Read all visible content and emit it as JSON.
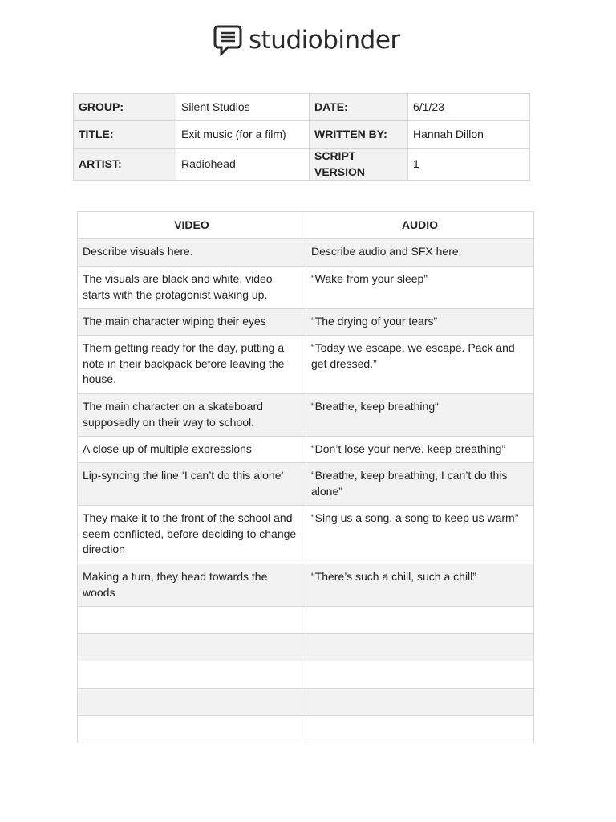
{
  "header": {
    "brand": "studiobinder"
  },
  "info_table": {
    "rows": [
      [
        "GROUP:",
        "Silent Studios",
        "DATE:",
        "6/1/23"
      ],
      [
        "TITLE:",
        "Exit music (for a film)",
        "WRITTEN BY:",
        "Hannah Dillon"
      ],
      [
        "ARTIST:",
        "Radiohead",
        "SCRIPT VERSION",
        "1"
      ]
    ]
  },
  "script_table": {
    "headers": [
      "VIDEO",
      "AUDIO"
    ],
    "rows": [
      [
        "Describe visuals here.",
        "Describe audio and SFX here."
      ],
      [
        "The visuals are black and white, video starts with the protagonist waking up.",
        "“Wake from your sleep”"
      ],
      [
        "The main character wiping their eyes",
        "“The drying of your tears”"
      ],
      [
        "Them getting ready for the day, putting a note in their backpack before leaving the house.",
        "“Today we escape, we escape. Pack and get dressed.”"
      ],
      [
        "The main character on a skateboard supposedly on their way to school.",
        "“Breathe, keep breathing“"
      ],
      [
        "A close up of multiple expressions",
        "“Don’t lose your nerve, keep breathing”"
      ],
      [
        "Lip-syncing the line ‘I can’t do this alone’",
        "“Breathe, keep breathing, I can’t do this alone”"
      ],
      [
        "They make it to the front of the school and seem conflicted, before deciding to change direction",
        "“Sing us a song, a song to keep us warm”"
      ],
      [
        "Making a turn, they head towards the woods",
        "“There’s such a chill, such a chill”"
      ]
    ]
  }
}
